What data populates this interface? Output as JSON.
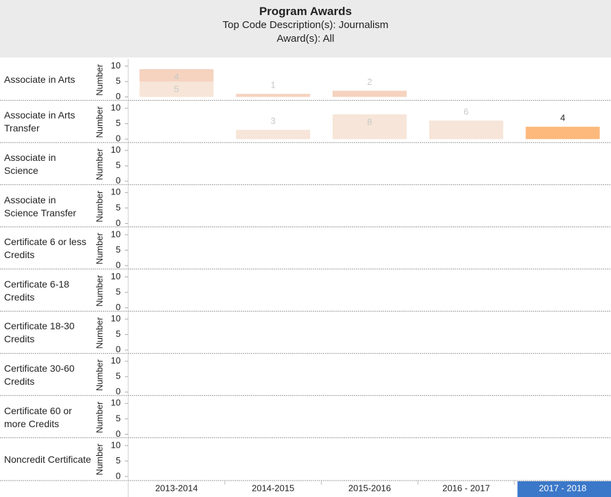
{
  "chart_data": {
    "type": "bar",
    "title": "Program Awards",
    "subtitles": [
      "Top Code Description(s): Journalism",
      "Award(s): All"
    ],
    "categories": [
      "2013-2014",
      "2014-2015",
      "2015-2016",
      "2016 - 2017",
      "2017 - 2018"
    ],
    "highlighted_category": 4,
    "y_label": "Number",
    "ylim": [
      0,
      11
    ],
    "yticks": [
      0,
      5,
      10
    ],
    "rows": [
      {
        "name": "Associate in Arts",
        "series": [
          {
            "color": "#f6e5d8",
            "label_color": "#c8c8c8",
            "values": [
              5,
              null,
              null,
              null,
              null
            ]
          },
          {
            "color": "#f5d3bf",
            "label_color": "#c8c8c8",
            "values": [
              4,
              1,
              2,
              null,
              null
            ]
          }
        ]
      },
      {
        "name": "Associate in Arts Transfer",
        "series": [
          {
            "color": "#f6e5d8",
            "label_color": "#c8c8c8",
            "values": [
              null,
              3,
              8,
              6,
              null
            ]
          },
          {
            "color": "#fdb97c",
            "label_color": "#222222",
            "values": [
              null,
              null,
              null,
              null,
              4
            ]
          }
        ]
      },
      {
        "name": "Associate in Science",
        "series": []
      },
      {
        "name": "Associate in Science Transfer",
        "series": []
      },
      {
        "name": "Certificate 6 or less Credits",
        "series": []
      },
      {
        "name": "Certificate 6-18 Credits",
        "series": []
      },
      {
        "name": "Certificate 18-30 Credits",
        "series": []
      },
      {
        "name": "Certificate 30-60 Credits",
        "series": []
      },
      {
        "name": "Certificate 60 or more Credits",
        "series": []
      },
      {
        "name": "Noncredit Certificate",
        "series": []
      }
    ]
  }
}
